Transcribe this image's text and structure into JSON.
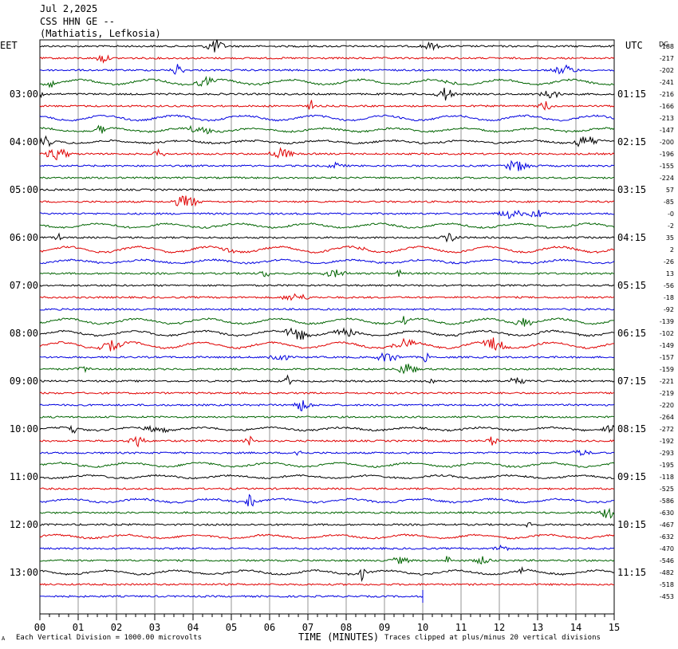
{
  "header": {
    "date": "Jul 2,2025",
    "station": "CSS HHN GE --",
    "location": "(Mathiatis, Lefkosia)"
  },
  "axis": {
    "left_label": "EET",
    "right_label": "UTC",
    "dc_label": "DC",
    "xlabel": "TIME (MINUTES)"
  },
  "footer": {
    "left_note": "Each Vertical Division = 1000.00 microvolts",
    "right_note": "Traces clipped at plus/minus 20 vertical divisions",
    "corner_mark": "A"
  },
  "chart_data": {
    "type": "line",
    "x_range": [
      0,
      15
    ],
    "x_ticks": [
      "00",
      "01",
      "02",
      "03",
      "04",
      "05",
      "06",
      "07",
      "08",
      "09",
      "10",
      "11",
      "12",
      "13",
      "14",
      "15"
    ],
    "grid": true,
    "trace_colors": [
      "#000000",
      "#e00000",
      "#0000e0",
      "#006400"
    ],
    "left_time_labels": [
      "03:00",
      "04:00",
      "05:00",
      "06:00",
      "07:00",
      "08:00",
      "09:00",
      "10:00",
      "11:00",
      "12:00",
      "13:00"
    ],
    "right_time_labels": [
      "01:15",
      "02:15",
      "03:15",
      "04:15",
      "05:15",
      "06:15",
      "07:15",
      "08:15",
      "09:15",
      "10:15",
      "11:15"
    ],
    "dc_offsets": [
      "-188",
      "-217",
      "-202",
      "-241",
      "-216",
      "-166",
      "-213",
      "-147",
      "-200",
      "-196",
      "-155",
      "-224",
      "57",
      "-85",
      "-0",
      "-2",
      "35",
      "2",
      "-26",
      "13",
      "-56",
      "-18",
      "-92",
      "-139",
      "-102",
      "-149",
      "-157",
      "-159",
      "-221",
      "-219",
      "-220",
      "-264",
      "-272",
      "-192",
      "-293",
      "-195",
      "-118",
      "-525",
      "-586",
      "-630",
      "-467",
      "-632",
      "-470",
      "-546",
      "-482",
      "-518",
      "-453"
    ],
    "last_trace_end_minute": 10
  }
}
